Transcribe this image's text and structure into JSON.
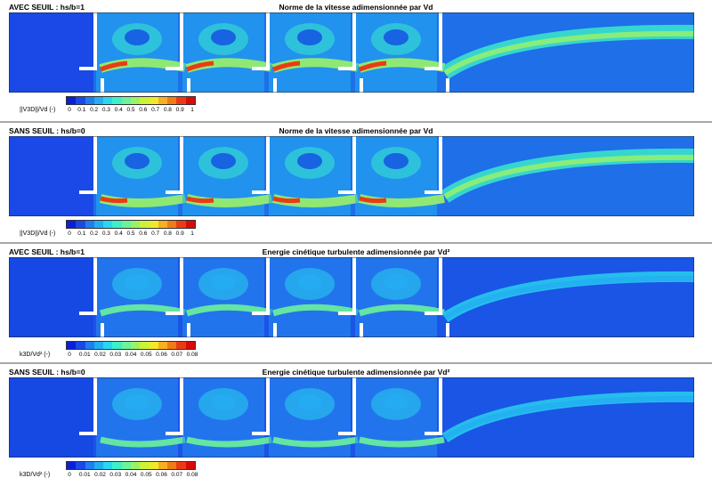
{
  "palette": [
    "#0a1fd8",
    "#1a49e8",
    "#1f7ff0",
    "#23aef2",
    "#28d8ee",
    "#3cf0c8",
    "#6cf29a",
    "#9cf266",
    "#ccf238",
    "#f2e82a",
    "#f6b020",
    "#f27a18",
    "#ea3c14",
    "#d80a0a"
  ],
  "panels": [
    {
      "case_label": "AVEC SEUIL : hs/b=1",
      "title": "Norme de la vitesse adimensionnée par Vd",
      "colorbar_label": "||V3D||/Vd (-)",
      "colorbar_ticks": [
        "0",
        "0.1",
        "0.2",
        "0.3",
        "0.4",
        "0.5",
        "0.6",
        "0.7",
        "0.8",
        "0.9",
        "1"
      ]
    },
    {
      "case_label": "SANS SEUIL : hs/b=0",
      "title": "Norme de la vitesse adimensionnée par Vd",
      "colorbar_label": "||V3D||/Vd (-)",
      "colorbar_ticks": [
        "0",
        "0.1",
        "0.2",
        "0.3",
        "0.4",
        "0.5",
        "0.6",
        "0.7",
        "0.8",
        "0.9",
        "1"
      ]
    },
    {
      "case_label": "AVEC SEUIL : hs/b=1",
      "title": "Energie cinétique turbulente adimensionnée par Vd²",
      "colorbar_label": "k3D/Vd² (-)",
      "colorbar_ticks": [
        "0",
        "0.01",
        "0.02",
        "0.03",
        "0.04",
        "0.05",
        "0.06",
        "0.07",
        "0.08"
      ]
    },
    {
      "case_label": "SANS SEUIL : hs/b=0",
      "title": "Energie cinétique turbulente adimensionnée par Vd²",
      "colorbar_label": "k3D/Vd² (-)",
      "colorbar_ticks": [
        "0",
        "0.01",
        "0.02",
        "0.03",
        "0.04",
        "0.05",
        "0.06",
        "0.07",
        "0.08"
      ]
    }
  ]
}
